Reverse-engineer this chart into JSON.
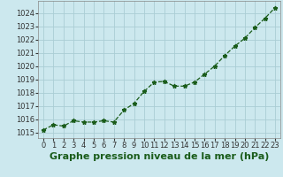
{
  "x": [
    0,
    1,
    2,
    3,
    4,
    5,
    6,
    7,
    8,
    9,
    10,
    11,
    12,
    13,
    14,
    15,
    16,
    17,
    18,
    19,
    20,
    21,
    22,
    23
  ],
  "y": [
    1015.2,
    1015.6,
    1015.5,
    1015.9,
    1015.8,
    1015.8,
    1015.9,
    1015.8,
    1016.7,
    1017.2,
    1018.1,
    1018.8,
    1018.85,
    1018.5,
    1018.5,
    1018.8,
    1019.4,
    1020.0,
    1020.8,
    1021.5,
    1022.1,
    1022.9,
    1023.6,
    1024.4
  ],
  "line_color": "#1a5c1a",
  "marker": "*",
  "marker_size": 3.5,
  "bg_color": "#cce8ee",
  "grid_color": "#aacdd4",
  "xlabel": "Graphe pression niveau de la mer (hPa)",
  "xlabel_fontsize": 8,
  "ylabel_ticks": [
    1015,
    1016,
    1017,
    1018,
    1019,
    1020,
    1021,
    1022,
    1023,
    1024
  ],
  "xlim": [
    -0.5,
    23.5
  ],
  "ylim": [
    1014.6,
    1024.9
  ],
  "tick_fontsize": 6,
  "line_width": 0.9,
  "line_style": "--"
}
